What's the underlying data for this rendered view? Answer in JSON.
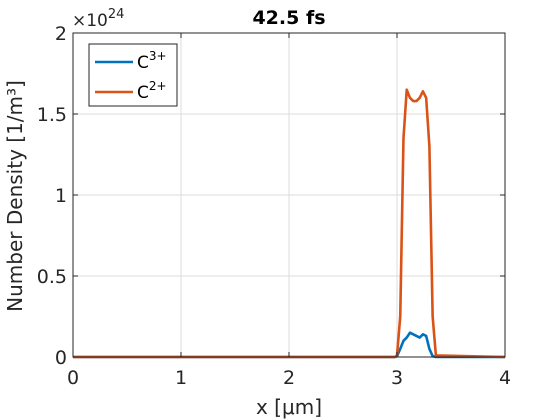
{
  "chart_data": {
    "type": "line",
    "title": "42.5 fs",
    "xlabel": "x [μm]",
    "ylabel": "Number Density [1/m³]",
    "xlim": [
      0,
      4
    ],
    "ylim": [
      0,
      2
    ],
    "xticks": [
      0,
      1,
      2,
      3,
      4
    ],
    "xtick_labels": [
      "0",
      "1",
      "2",
      "3",
      "4"
    ],
    "yticks": [
      0,
      0.5,
      1,
      1.5,
      2
    ],
    "ytick_labels": [
      "0",
      "0.5",
      "1",
      "1.5",
      "2"
    ],
    "y_exponent": "24",
    "y_exponent_prefix": "×10",
    "grid": true,
    "legend_placement": "top-left",
    "series": [
      {
        "name": "C3+",
        "label_base": "C",
        "label_sup": "3+",
        "color": "#0072BD",
        "x": [
          0,
          2.98,
          3.0,
          3.03,
          3.06,
          3.09,
          3.12,
          3.15,
          3.18,
          3.21,
          3.24,
          3.27,
          3.3,
          3.33,
          3.36,
          4.0
        ],
        "y": [
          0,
          0,
          0.005,
          0.05,
          0.1,
          0.12,
          0.15,
          0.14,
          0.13,
          0.12,
          0.14,
          0.13,
          0.05,
          0.005,
          0,
          0
        ]
      },
      {
        "name": "C2+",
        "label_base": "C",
        "label_sup": "2+",
        "color": "#D95319",
        "x": [
          0,
          2.98,
          3.0,
          3.03,
          3.06,
          3.09,
          3.12,
          3.15,
          3.18,
          3.21,
          3.24,
          3.27,
          3.3,
          3.33,
          3.36,
          4.0
        ],
        "y": [
          0,
          0,
          0.01,
          0.25,
          1.35,
          1.65,
          1.6,
          1.58,
          1.58,
          1.6,
          1.64,
          1.6,
          1.3,
          0.25,
          0.01,
          0
        ]
      }
    ]
  }
}
